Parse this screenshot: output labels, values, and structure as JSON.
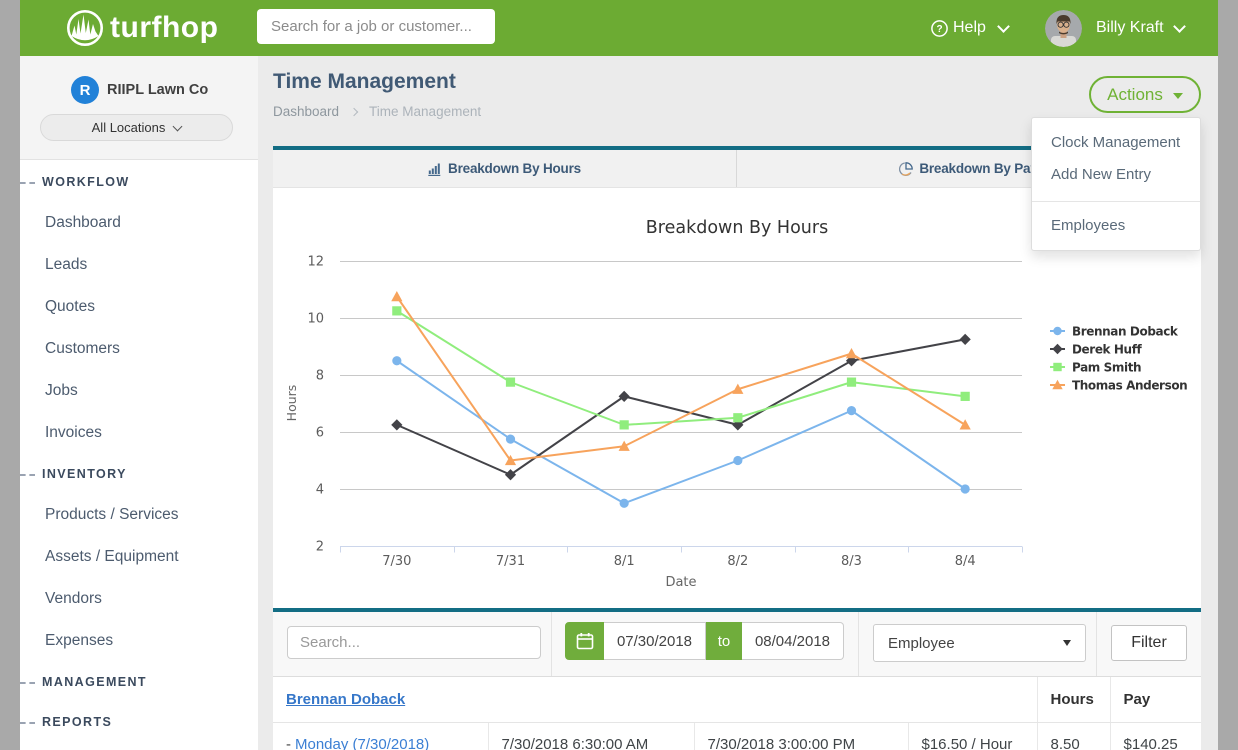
{
  "header": {
    "brand": "turfhop",
    "search_placeholder": "Search for a job or customer...",
    "help_label": "Help",
    "user_name": "Billy Kraft"
  },
  "sidebar": {
    "company_name": "RIIPL Lawn Co",
    "company_initial": "R",
    "location_selector": "All Locations",
    "sections": [
      {
        "label": "WORKFLOW",
        "items": [
          "Dashboard",
          "Leads",
          "Quotes",
          "Customers",
          "Jobs",
          "Invoices"
        ]
      },
      {
        "label": "INVENTORY",
        "items": [
          "Products / Services",
          "Assets / Equipment",
          "Vendors",
          "Expenses"
        ]
      },
      {
        "label": "MANAGEMENT",
        "items": []
      },
      {
        "label": "REPORTS",
        "items": []
      }
    ]
  },
  "page": {
    "title": "Time Management",
    "breadcrumb": {
      "first": "Dashboard",
      "last": "Time Management"
    },
    "actions_label": "Actions",
    "actions_menu": [
      [
        "Clock Management",
        "Add New Entry"
      ],
      [
        "Employees"
      ]
    ],
    "tabs": [
      {
        "label": "Breakdown By Hours",
        "icon": "bar-chart-icon"
      },
      {
        "label": "Breakdown By Pay",
        "icon": "pie-chart-icon"
      }
    ]
  },
  "chart_data": {
    "type": "line",
    "title": "Breakdown By Hours",
    "xlabel": "Date",
    "ylabel": "Hours",
    "categories": [
      "7/30",
      "7/31",
      "8/1",
      "8/2",
      "8/3",
      "8/4"
    ],
    "ylim": [
      2,
      12
    ],
    "ytick_step": 2,
    "grid": true,
    "legend_position": "right-middle",
    "series": [
      {
        "name": "Brennan Doback",
        "color": "#7cb5ec",
        "marker": "circle",
        "values": [
          8.5,
          5.75,
          3.5,
          5,
          6.75,
          4
        ]
      },
      {
        "name": "Derek Huff",
        "color": "#434348",
        "marker": "diamond",
        "values": [
          6.25,
          4.5,
          7.25,
          6.25,
          8.5,
          9.25
        ]
      },
      {
        "name": "Pam Smith",
        "color": "#90ed7d",
        "marker": "square",
        "values": [
          10.25,
          7.75,
          6.25,
          6.5,
          7.75,
          7.25
        ]
      },
      {
        "name": "Thomas Anderson",
        "color": "#f7a35c",
        "marker": "triangle",
        "values": [
          10.75,
          5,
          5.5,
          7.5,
          8.75,
          6.25
        ]
      }
    ]
  },
  "filters": {
    "search_placeholder": "Search...",
    "date_from": "07/30/2018",
    "to_label": "to",
    "date_to": "08/04/2018",
    "employee_select": "Employee",
    "filter_button": "Filter"
  },
  "table": {
    "group_header": "Brennan Doback",
    "hours_col": "Hours",
    "pay_col": "Pay",
    "rows": [
      {
        "day_prefix": "-",
        "day": "Monday (7/30/2018)",
        "clock_in": "7/30/2018 6:30:00 AM",
        "clock_out": "7/30/2018 3:00:00 PM",
        "rate": "$16.50 / Hour",
        "hours": "8.50",
        "pay": "$140.25"
      }
    ]
  }
}
